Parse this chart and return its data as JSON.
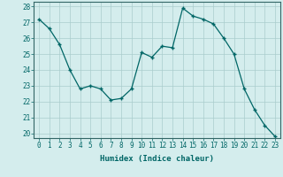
{
  "xlabel": "Humidex (Indice chaleur)",
  "x_values": [
    0,
    1,
    2,
    3,
    4,
    5,
    6,
    7,
    8,
    9,
    10,
    11,
    12,
    13,
    14,
    15,
    16,
    17,
    18,
    19,
    20,
    21,
    22,
    23
  ],
  "y_values": [
    27.2,
    26.6,
    25.6,
    24.0,
    22.8,
    23.0,
    22.8,
    22.1,
    22.2,
    22.8,
    25.1,
    24.8,
    25.5,
    25.4,
    27.9,
    27.4,
    27.2,
    26.9,
    26.0,
    25.0,
    22.8,
    21.5,
    20.5,
    19.8
  ],
  "line_color": "#006666",
  "marker_color": "#006666",
  "bg_color": "#d4eded",
  "grid_color": "#aacccc",
  "axis_color": "#336666",
  "tick_label_color": "#006666",
  "xlabel_color": "#006666",
  "ylim_min": 20,
  "ylim_max": 28,
  "yticks": [
    20,
    21,
    22,
    23,
    24,
    25,
    26,
    27,
    28
  ],
  "xticks": [
    0,
    1,
    2,
    3,
    4,
    5,
    6,
    7,
    8,
    9,
    10,
    11,
    12,
    13,
    14,
    15,
    16,
    17,
    18,
    19,
    20,
    21,
    22,
    23
  ],
  "tick_fontsize": 5.5,
  "label_fontsize": 6.5
}
